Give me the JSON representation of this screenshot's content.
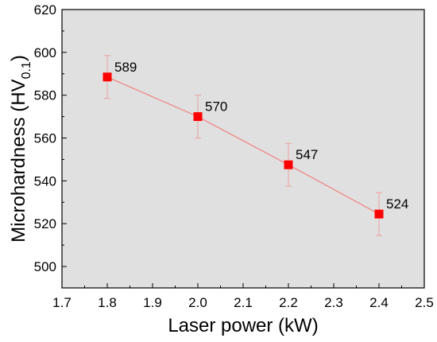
{
  "chart_data": {
    "type": "line",
    "title": "",
    "xlabel": "Laser power (kW)",
    "ylabel": {
      "main": "Microhardness (HV",
      "subscript": "0.1",
      "close": ")"
    },
    "xlim": [
      1.7,
      2.5
    ],
    "ylim": [
      490,
      620
    ],
    "x_ticks": [
      1.7,
      1.8,
      1.9,
      2.0,
      2.1,
      2.2,
      2.3,
      2.4,
      2.5
    ],
    "x_tick_labels": [
      "1.7",
      "1.8",
      "1.9",
      "2.0",
      "2.1",
      "2.2",
      "2.3",
      "2.4",
      "2.5"
    ],
    "y_ticks": [
      500,
      520,
      540,
      560,
      580,
      600,
      620
    ],
    "y_tick_labels": [
      "500",
      "520",
      "540",
      "560",
      "580",
      "600",
      "620"
    ],
    "grid": false,
    "plot_background": "#e0e0e0",
    "series": [
      {
        "marker": "square",
        "color": "#ff0000",
        "line_color": "#f08080",
        "errorbar_color": "#f0a0a0",
        "points": [
          {
            "x": 1.8,
            "y": 588.5,
            "err": 10,
            "label": "589"
          },
          {
            "x": 2.0,
            "y": 570.0,
            "err": 10,
            "label": "570"
          },
          {
            "x": 2.2,
            "y": 547.5,
            "err": 10,
            "label": "547"
          },
          {
            "x": 2.4,
            "y": 524.5,
            "err": 10,
            "label": "524"
          }
        ]
      }
    ]
  }
}
